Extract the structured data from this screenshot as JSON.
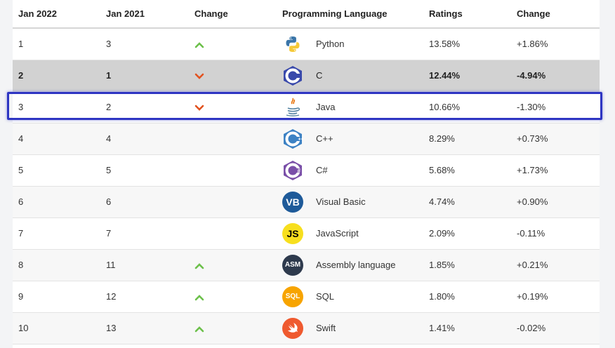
{
  "colors": {
    "up_arrow": "#6cc04a",
    "down_arrow": "#e2521f",
    "selected_row": "#d2d2d2",
    "highlight_border": "#2e35c2"
  },
  "table": {
    "headers": [
      "Jan 2022",
      "Jan 2021",
      "Change",
      "Programming Language",
      "Ratings",
      "Change"
    ],
    "rows": [
      {
        "jan2022": "1",
        "jan2021": "3",
        "trend": "up",
        "language": "Python",
        "icon": "python-icon",
        "ratings": "13.58%",
        "change": "+1.86%"
      },
      {
        "jan2022": "2",
        "jan2021": "1",
        "trend": "down",
        "language": "C",
        "icon": "c-icon",
        "ratings": "12.44%",
        "change": "-4.94%"
      },
      {
        "jan2022": "3",
        "jan2021": "2",
        "trend": "down",
        "language": "Java",
        "icon": "java-icon",
        "ratings": "10.66%",
        "change": "-1.30%"
      },
      {
        "jan2022": "4",
        "jan2021": "4",
        "trend": "none",
        "language": "C++",
        "icon": "cpp-icon",
        "ratings": "8.29%",
        "change": "+0.73%"
      },
      {
        "jan2022": "5",
        "jan2021": "5",
        "trend": "none",
        "language": "C#",
        "icon": "csharp-icon",
        "ratings": "5.68%",
        "change": "+1.73%"
      },
      {
        "jan2022": "6",
        "jan2021": "6",
        "trend": "none",
        "language": "Visual Basic",
        "icon": "vb-icon",
        "logo_text": "VB",
        "ratings": "4.74%",
        "change": "+0.90%"
      },
      {
        "jan2022": "7",
        "jan2021": "7",
        "trend": "none",
        "language": "JavaScript",
        "icon": "js-icon",
        "logo_text": "JS",
        "ratings": "2.09%",
        "change": "-0.11%"
      },
      {
        "jan2022": "8",
        "jan2021": "11",
        "trend": "up",
        "language": "Assembly language",
        "icon": "asm-icon",
        "logo_text": "ASM",
        "ratings": "1.85%",
        "change": "+0.21%"
      },
      {
        "jan2022": "9",
        "jan2021": "12",
        "trend": "up",
        "language": "SQL",
        "icon": "sql-icon",
        "logo_text": "SQL",
        "ratings": "1.80%",
        "change": "+0.19%"
      },
      {
        "jan2022": "10",
        "jan2021": "13",
        "trend": "up",
        "language": "Swift",
        "icon": "swift-icon",
        "ratings": "1.41%",
        "change": "-0.02%"
      }
    ]
  }
}
